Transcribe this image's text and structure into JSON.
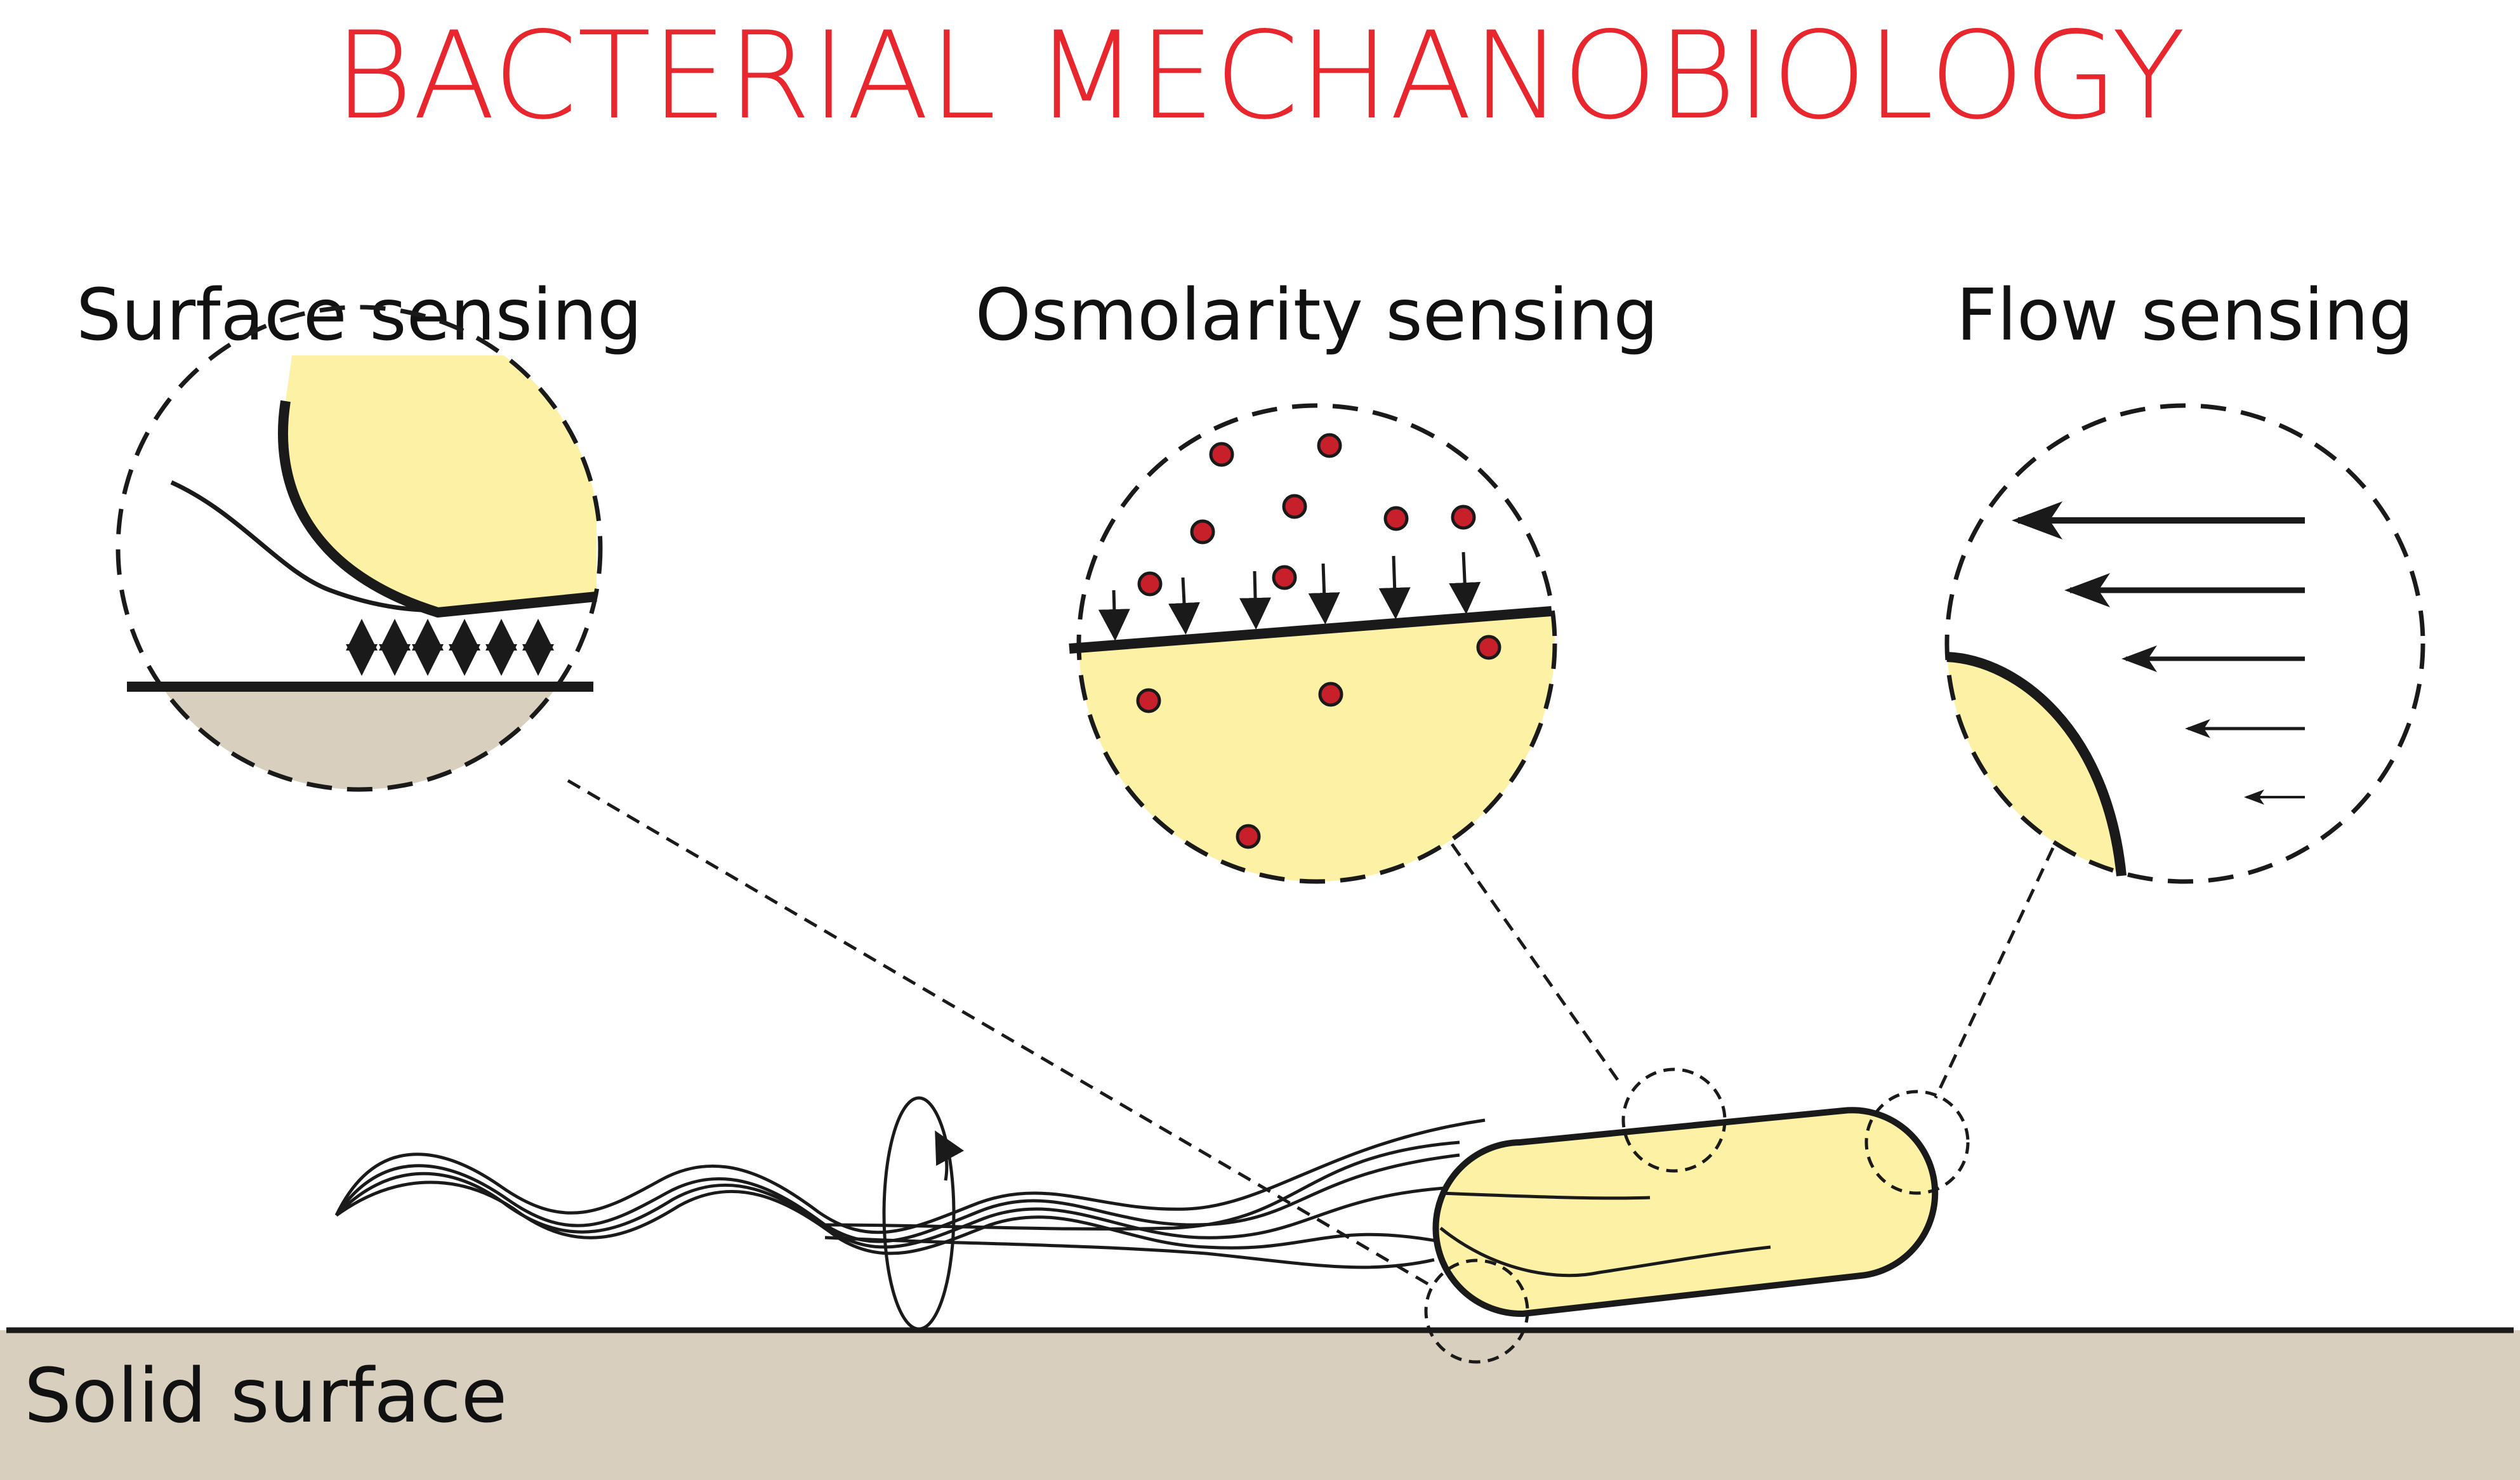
{
  "title": "BACTERIAL MECHANOBIOLOGY",
  "panels": [
    {
      "label": "Surface sensing"
    },
    {
      "label": "Osmolarity sensing"
    },
    {
      "label": "Flow sensing"
    }
  ],
  "surface_label": "Solid surface",
  "colors": {
    "title": "#e8262d",
    "cell_fill": "#fdf1a6",
    "surface_fill": "#d8cfbf",
    "ion": "#c8202a",
    "stroke": "#1a1a1a"
  }
}
